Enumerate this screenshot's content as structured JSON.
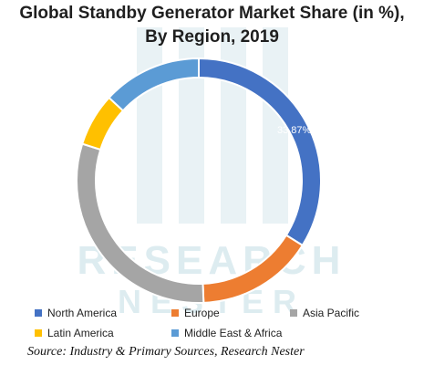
{
  "chart_data": {
    "type": "pie",
    "title": "Global Standby Generator Market Share (in %), By Region, 2019",
    "title_lines": [
      "Global Standby Generator Market Share (in %),",
      "By Region, 2019"
    ],
    "categories": [
      "North America",
      "Europe",
      "Asia Pacific",
      "Latin America",
      "Middle East & Africa"
    ],
    "values": [
      33.87,
      15.5,
      30.5,
      7.0,
      13.13
    ],
    "colors": [
      "#4472C4",
      "#ED7D31",
      "#A5A5A5",
      "#FFC000",
      "#5B9BD5"
    ],
    "data_labels": [
      "33.87%",
      "",
      "",
      "",
      ""
    ],
    "legend_position": "bottom",
    "style": "doughnut"
  },
  "source": "Source: Industry & Primary Sources, Research Nester",
  "watermark": {
    "line1": "RESEARCH",
    "line2": "NESTER",
    "color": "#9fc9d6"
  }
}
